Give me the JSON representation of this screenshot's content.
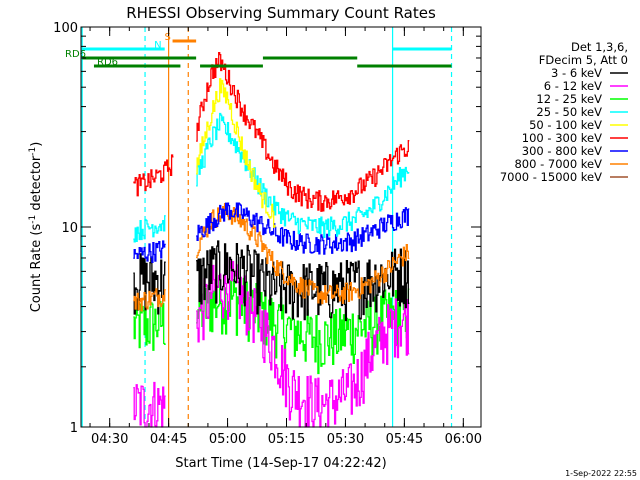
{
  "chart_data": {
    "type": "line",
    "title": "RHESSI Observing Summary Count Rates",
    "xlabel": "Start Time (14-Sep-17 04:22:42)",
    "ylabel_main": "Count Rate (s",
    "ylabel_sup1": "-1",
    "ylabel_mid": " detector",
    "ylabel_sup2": "-1",
    "ylabel_end": ")",
    "yscale": "log",
    "ylim": [
      1,
      100
    ],
    "y_ticks": [
      {
        "value": 1,
        "label": "1"
      },
      {
        "value": 10,
        "label": "10"
      },
      {
        "value": 100,
        "label": "100"
      }
    ],
    "xlim": [
      "04:22:42",
      "06:04:30"
    ],
    "x_ticks": [
      {
        "value": "04:30",
        "label": "04:30"
      },
      {
        "value": "04:45",
        "label": "04:45"
      },
      {
        "value": "05:00",
        "label": "05:00"
      },
      {
        "value": "05:15",
        "label": "05:15"
      },
      {
        "value": "05:30",
        "label": "05:30"
      },
      {
        "value": "05:45",
        "label": "05:45"
      },
      {
        "value": "06:00",
        "label": "06:00"
      }
    ],
    "legend_header": [
      "Det 1,3,6,",
      "FDecim 5, Att 0"
    ],
    "legend_position": "right",
    "series": [
      {
        "name": "3 - 6 keV",
        "color": "#000000",
        "x": [
          "04:36",
          "04:40",
          "04:44",
          "04:48",
          "04:52",
          "04:56",
          "05:00",
          "05:04",
          "05:08",
          "05:12",
          "05:16",
          "05:20",
          "05:24",
          "05:28",
          "05:32",
          "05:36",
          "05:40",
          "05:44",
          "05:46"
        ],
        "y": [
          5.5,
          5.5,
          5.5,
          null,
          5.5,
          6.2,
          6.5,
          6.2,
          5.5,
          5.0,
          5.0,
          5.0,
          5.0,
          5.0,
          5.2,
          5.5,
          5.8,
          6.0,
          6.0
        ]
      },
      {
        "name": "6 - 12 keV",
        "color": "#ff00ff",
        "x": [
          "04:36",
          "04:40",
          "04:44",
          "04:48",
          "04:52",
          "04:56",
          "05:00",
          "05:04",
          "05:08",
          "05:12",
          "05:16",
          "05:20",
          "05:24",
          "05:28",
          "05:32",
          "05:36",
          "05:40",
          "05:44",
          "05:46"
        ],
        "y": [
          1.3,
          1.3,
          1.3,
          null,
          3.5,
          4.8,
          5.3,
          4.5,
          3.5,
          2.5,
          1.6,
          1.4,
          1.3,
          1.4,
          1.6,
          2.3,
          3.0,
          3.5,
          3.5
        ]
      },
      {
        "name": "12 - 25 keV",
        "color": "#00ff00",
        "x": [
          "04:36",
          "04:40",
          "04:44",
          "04:48",
          "04:52",
          "04:56",
          "05:00",
          "05:04",
          "05:08",
          "05:12",
          "05:16",
          "05:20",
          "05:24",
          "05:28",
          "05:32",
          "05:36",
          "05:40",
          "05:44",
          "05:46"
        ],
        "y": [
          3.2,
          3.3,
          3.4,
          null,
          3.8,
          4.2,
          4.5,
          4.2,
          3.8,
          3.4,
          3.1,
          2.9,
          2.8,
          2.9,
          3.1,
          3.3,
          3.6,
          3.8,
          3.8
        ]
      },
      {
        "name": "25 - 50 keV",
        "color": "#00ffff",
        "x": [
          "04:36",
          "04:40",
          "04:44",
          "04:48",
          "04:52",
          "04:56",
          "04:58",
          "05:00",
          "05:02",
          "05:04",
          "05:08",
          "05:12",
          "05:16",
          "05:20",
          "05:24",
          "05:28",
          "05:32",
          "05:36",
          "05:40",
          "05:44",
          "05:46"
        ],
        "y": [
          9.5,
          10,
          10.5,
          null,
          18,
          28,
          33,
          30,
          26,
          22,
          16,
          12.5,
          10.8,
          10.2,
          10,
          10.2,
          10.8,
          12,
          14.5,
          18,
          20
        ]
      },
      {
        "name": "50 - 100 keV",
        "color": "#ffff00",
        "x": [
          "04:52",
          "04:56",
          "04:58",
          "05:00",
          "05:02",
          "05:04",
          "05:08",
          "05:12"
        ],
        "y": [
          20,
          38,
          50,
          44,
          32,
          24,
          15,
          11
        ]
      },
      {
        "name": "100 - 300 keV",
        "color": "#ff0000",
        "x": [
          "04:36",
          "04:40",
          "04:44",
          "04:46",
          "04:48",
          "04:52",
          "04:54",
          "04:56",
          "04:58",
          "05:00",
          "05:02",
          "05:04",
          "05:08",
          "05:12",
          "05:16",
          "05:20",
          "05:24",
          "05:28",
          "05:32",
          "05:36",
          "05:40",
          "05:44",
          "05:46"
        ],
        "y": [
          16,
          17,
          19,
          21,
          null,
          30,
          44,
          60,
          68,
          56,
          46,
          38,
          28,
          20,
          15.5,
          14,
          13.5,
          14,
          15,
          17,
          20,
          24,
          25
        ]
      },
      {
        "name": "300 - 800 keV",
        "color": "#0000ff",
        "x": [
          "04:36",
          "04:40",
          "04:44",
          "04:48",
          "04:52",
          "04:56",
          "05:00",
          "05:04",
          "05:08",
          "05:12",
          "05:16",
          "05:20",
          "05:24",
          "05:28",
          "05:32",
          "05:36",
          "05:40",
          "05:44",
          "05:46"
        ],
        "y": [
          7.2,
          7.5,
          7.8,
          null,
          9.2,
          10.8,
          12.3,
          11.6,
          10.5,
          9.3,
          8.6,
          8.3,
          8.3,
          8.3,
          8.6,
          9.3,
          10.3,
          11.2,
          11.5
        ]
      },
      {
        "name": "800 - 7000 keV",
        "color": "#ff8000",
        "x": [
          "04:36",
          "04:40",
          "04:44",
          "04:48",
          "04:52",
          "04:56",
          "05:00",
          "05:04",
          "05:08",
          "05:12",
          "05:16",
          "05:20",
          "05:24",
          "05:28",
          "05:32",
          "05:36",
          "05:40",
          "05:44",
          "05:46"
        ],
        "y": [
          4.2,
          4.4,
          4.6,
          null,
          8.0,
          11.0,
          12.0,
          10.5,
          8.5,
          6.5,
          5.5,
          4.9,
          4.6,
          4.6,
          4.8,
          5.2,
          6.0,
          7.0,
          7.5
        ]
      },
      {
        "name": "7000 - 15000 keV",
        "color": "#a0522d",
        "x": [],
        "y": []
      }
    ],
    "state_bars": [
      {
        "label": "S",
        "color": "#ff8000",
        "row": "top",
        "start": "04:46",
        "end": "04:52"
      },
      {
        "label": "N",
        "color": "#00ffff",
        "row": "upper",
        "start": "04:23",
        "end": "04:44"
      },
      {
        "label": "",
        "color": "#00ffff",
        "row": "upper",
        "start": "05:42",
        "end": "05:57"
      },
      {
        "label": "RD6",
        "color": "#008000",
        "row": "mid",
        "start": "04:23",
        "end": "04:52"
      },
      {
        "label": "RD6",
        "color": "#008000",
        "row": "low",
        "start": "04:26",
        "end": "04:48"
      },
      {
        "label": "",
        "color": "#008000",
        "row": "low",
        "start": "04:53",
        "end": "05:09"
      },
      {
        "label": "",
        "color": "#008000",
        "row": "mid",
        "start": "05:09",
        "end": "05:33"
      },
      {
        "label": "",
        "color": "#008000",
        "row": "low",
        "start": "05:33",
        "end": "05:57"
      }
    ],
    "vertical_markers": [
      {
        "x": "04:23",
        "color": "#00ffff",
        "style": "solid"
      },
      {
        "x": "04:39",
        "color": "#00ffff",
        "style": "dashed"
      },
      {
        "x": "04:45",
        "color": "#ff8000",
        "style": "solid"
      },
      {
        "x": "04:50",
        "color": "#ff8000",
        "style": "dashed"
      },
      {
        "x": "05:42",
        "color": "#00ffff",
        "style": "solid"
      },
      {
        "x": "05:57",
        "color": "#00ffff",
        "style": "dashed"
      }
    ],
    "footer_date": "1-Sep-2022 22:55"
  }
}
